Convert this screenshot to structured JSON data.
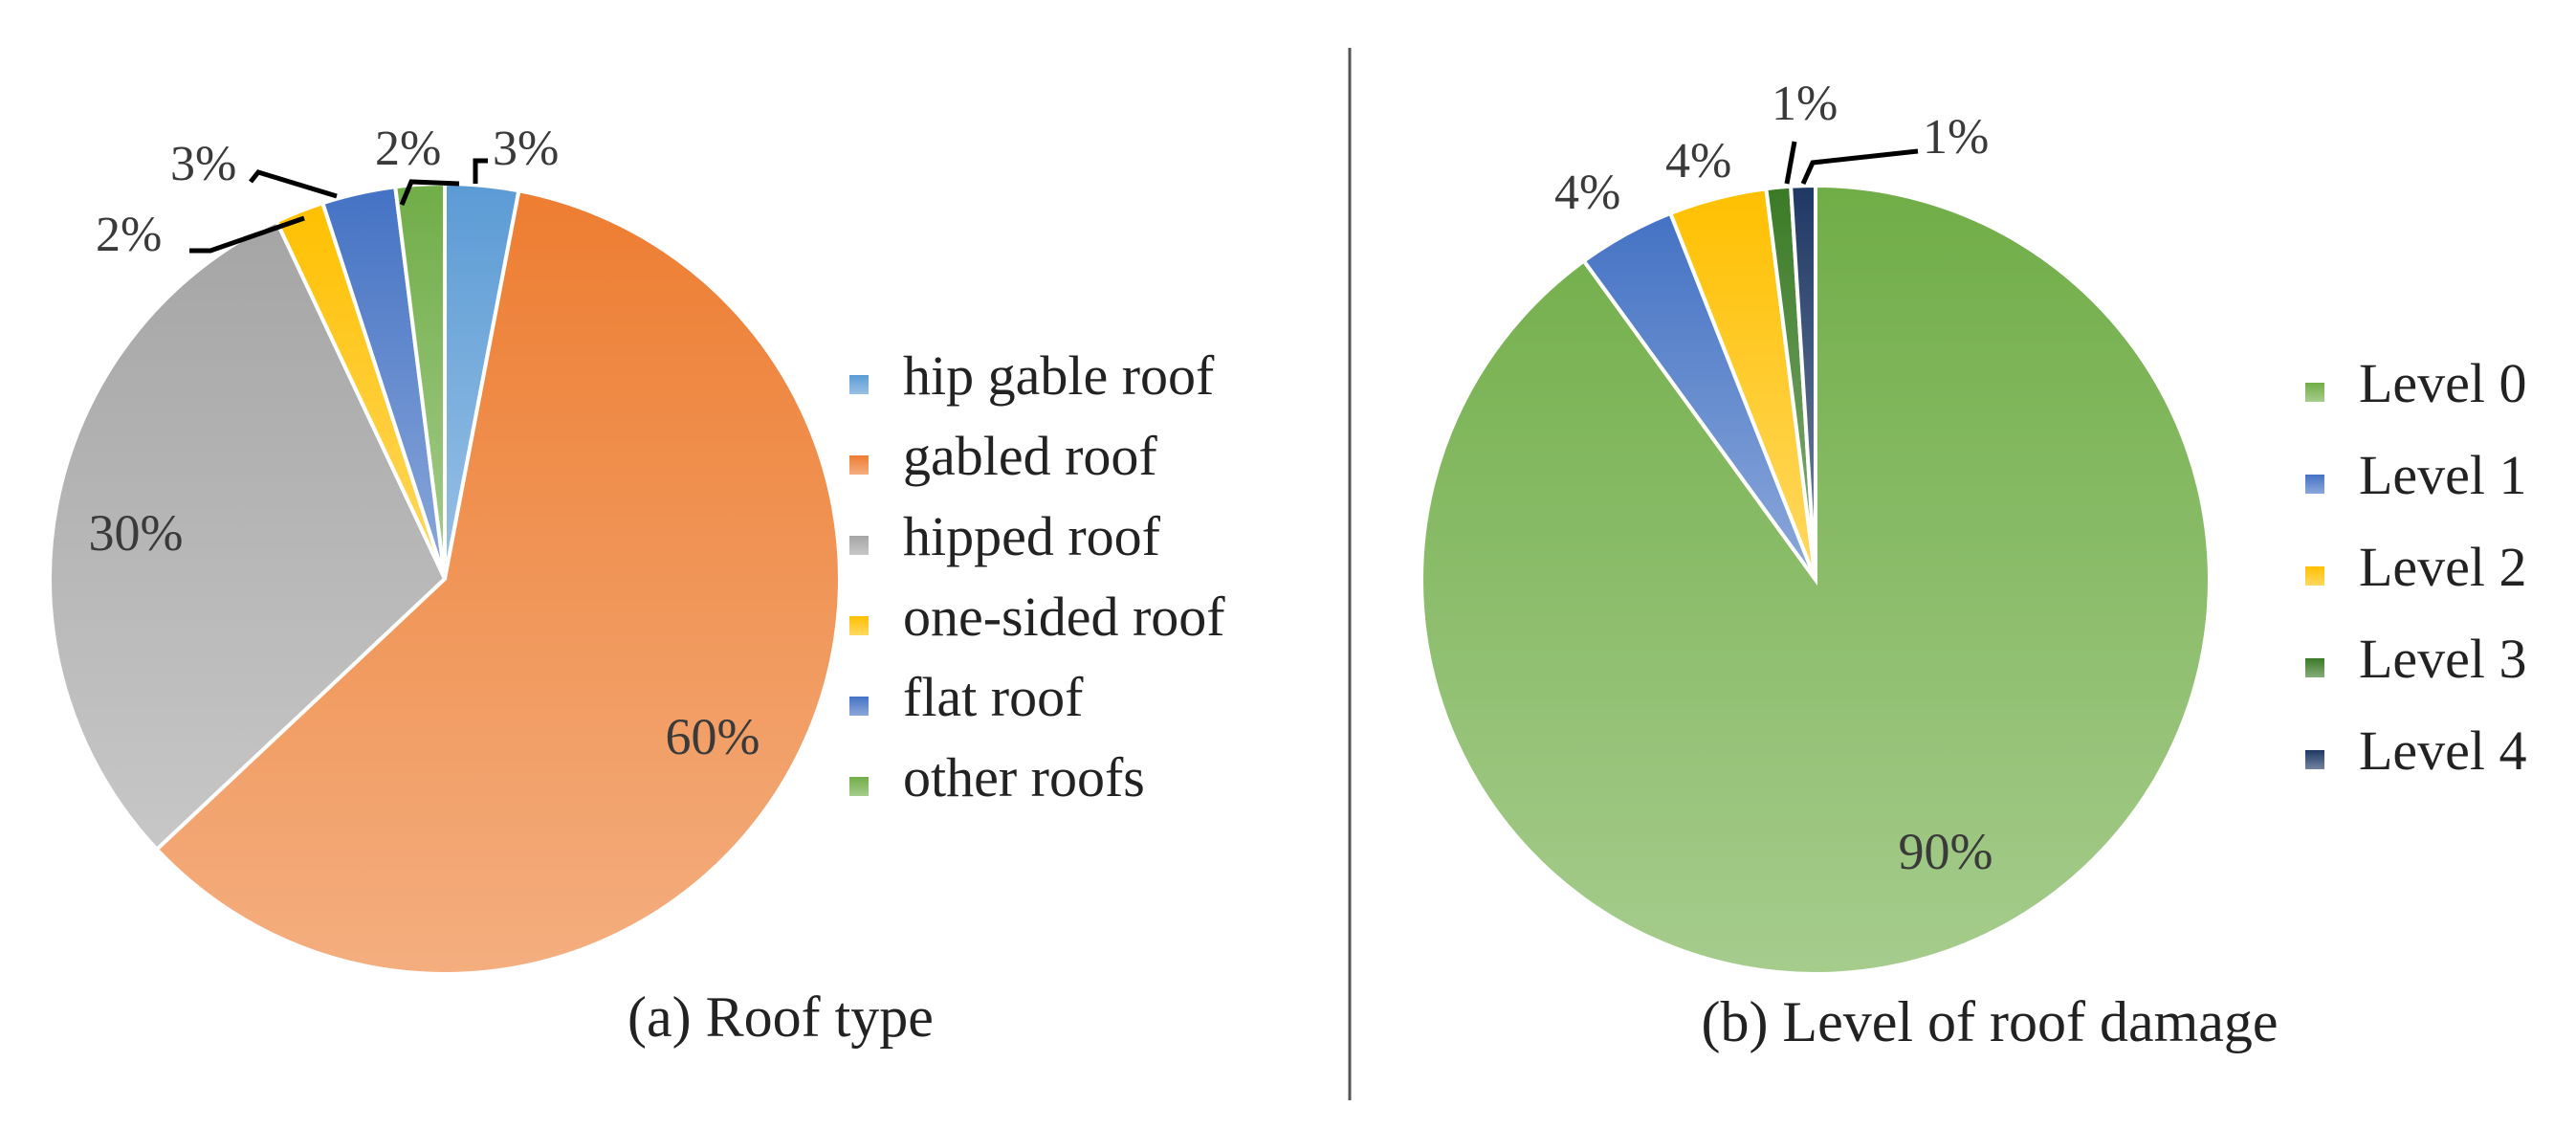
{
  "chart_data": [
    {
      "type": "pie",
      "caption": "(a) Roof type",
      "categories": [
        "hip gable roof",
        "gabled roof",
        "hipped roof",
        "one-sided  roof",
        "flat roof",
        "other roofs"
      ],
      "values": [
        3,
        60,
        30,
        2,
        3,
        2
      ],
      "labels": [
        "3%",
        "60%",
        "30%",
        "2%",
        "3%",
        "2%"
      ],
      "colors": [
        "#5b9bd5",
        "#ed7d31",
        "#a5a5a5",
        "#ffc000",
        "#4472c4",
        "#70ad47"
      ],
      "legend_position": "right"
    },
    {
      "type": "pie",
      "caption": "(b) Level of roof damage",
      "categories": [
        "Level 0",
        "Level 1",
        "Level 2",
        "Level 3",
        "Level 4"
      ],
      "values": [
        90,
        4,
        4,
        1,
        1
      ],
      "labels": [
        "90%",
        "4%",
        "4%",
        "1%",
        "1%"
      ],
      "colors": [
        "#70ad47",
        "#4472c4",
        "#ffc000",
        "#3a7a25",
        "#1f3864"
      ],
      "legend_position": "right"
    }
  ]
}
